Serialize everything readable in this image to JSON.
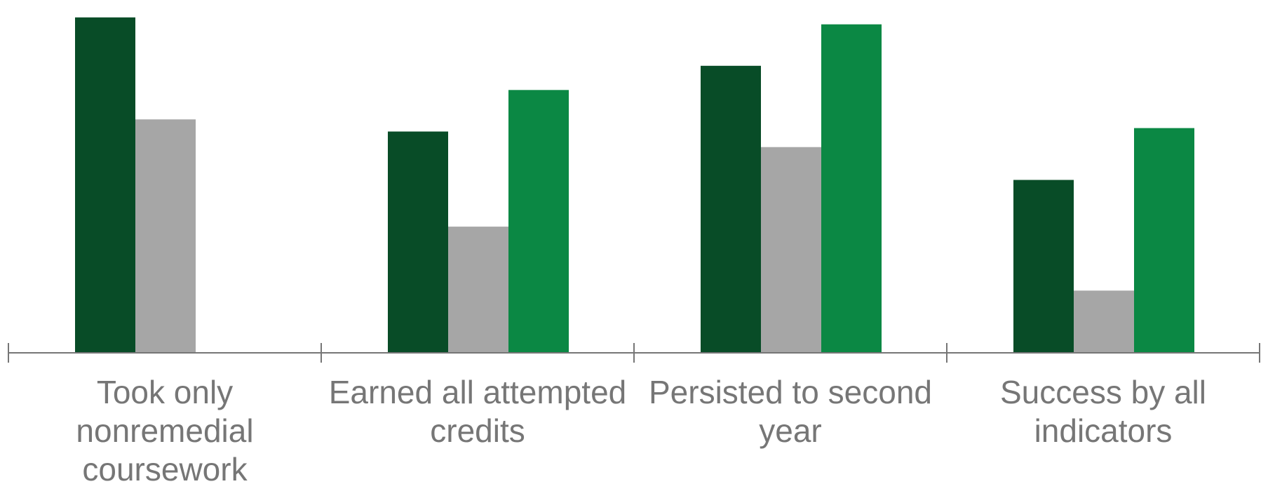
{
  "chart_data": {
    "type": "bar",
    "categories": [
      [
        "Took only",
        "nonremedial",
        "coursework"
      ],
      [
        "Earned all attempted",
        "credits"
      ],
      [
        "Persisted to second",
        "year"
      ],
      [
        "Success by all",
        "indicators"
      ]
    ],
    "series": [
      {
        "values": [
          97,
          64,
          83,
          50
        ],
        "color": "#084c27"
      },
      {
        "values": [
          67.5,
          36.5,
          59.5,
          18
        ],
        "color": "#a6a6a6"
      },
      {
        "values": [
          null,
          76,
          95,
          65
        ],
        "color": "#0b8844"
      }
    ],
    "ylim": [
      0,
      100
    ],
    "grid": false,
    "legend": "none",
    "axis_color": "#767676",
    "label_color": "#767676"
  }
}
